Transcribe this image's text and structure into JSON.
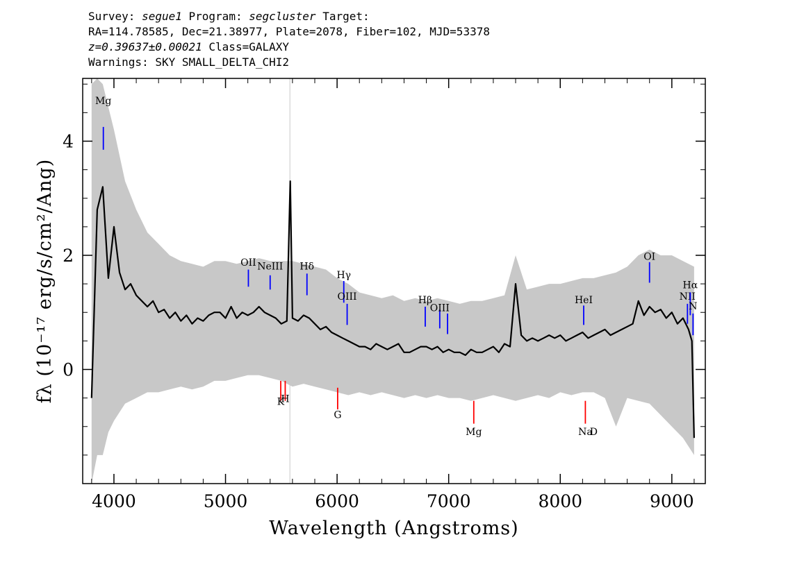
{
  "header": {
    "survey_label": "Survey:",
    "survey_value": "segue1",
    "program_label": "Program:",
    "program_value": "segcluster",
    "target_label": "Target:",
    "line2": "RA=114.78585, Dec=21.38977, Plate=2078, Fiber=102, MJD=53378",
    "redshift": "z=0.39637±0.00021",
    "class_text": "Class=GALAXY",
    "warnings": "Warnings: SKY SMALL_DELTA_CHI2"
  },
  "chart_data": {
    "type": "line",
    "xlabel": "Wavelength (Angstroms)",
    "ylabel": "fλ (10⁻¹⁷ erg/s/cm²/Ang)",
    "xlim": [
      3720,
      9300
    ],
    "ylim": [
      -2.0,
      5.1
    ],
    "x_ticks": [
      4000,
      5000,
      6000,
      7000,
      8000,
      9000
    ],
    "y_ticks": [
      0,
      2,
      4
    ],
    "grid": false,
    "vertical_marker_x": 5577,
    "series": [
      {
        "role": "spectrum",
        "color": "#000000",
        "x": [
          3800,
          3850,
          3900,
          3950,
          4000,
          4050,
          4100,
          4150,
          4200,
          4250,
          4300,
          4350,
          4400,
          4450,
          4500,
          4550,
          4600,
          4650,
          4700,
          4750,
          4800,
          4850,
          4900,
          4950,
          5000,
          5050,
          5100,
          5150,
          5200,
          5250,
          5300,
          5350,
          5400,
          5450,
          5500,
          5550,
          5580,
          5600,
          5650,
          5700,
          5750,
          5800,
          5850,
          5900,
          5950,
          6000,
          6050,
          6100,
          6150,
          6200,
          6250,
          6300,
          6350,
          6400,
          6450,
          6500,
          6550,
          6600,
          6650,
          6700,
          6750,
          6800,
          6850,
          6900,
          6950,
          7000,
          7050,
          7100,
          7150,
          7200,
          7250,
          7300,
          7350,
          7400,
          7450,
          7500,
          7550,
          7600,
          7650,
          7700,
          7750,
          7800,
          7850,
          7900,
          7950,
          8000,
          8050,
          8100,
          8150,
          8200,
          8250,
          8300,
          8350,
          8400,
          8450,
          8500,
          8550,
          8600,
          8650,
          8700,
          8750,
          8800,
          8850,
          8900,
          8950,
          9000,
          9050,
          9100,
          9150,
          9180,
          9200
        ],
        "y": [
          -0.5,
          2.8,
          3.2,
          1.6,
          2.5,
          1.7,
          1.4,
          1.5,
          1.3,
          1.2,
          1.1,
          1.2,
          1.0,
          1.05,
          0.9,
          1.0,
          0.85,
          0.95,
          0.8,
          0.9,
          0.85,
          0.95,
          1.0,
          1.0,
          0.9,
          1.1,
          0.9,
          1.0,
          0.95,
          1.0,
          1.1,
          1.0,
          0.95,
          0.9,
          0.8,
          0.85,
          3.3,
          0.9,
          0.85,
          0.95,
          0.9,
          0.8,
          0.7,
          0.75,
          0.65,
          0.6,
          0.55,
          0.5,
          0.45,
          0.4,
          0.4,
          0.35,
          0.45,
          0.4,
          0.35,
          0.4,
          0.45,
          0.3,
          0.3,
          0.35,
          0.4,
          0.4,
          0.35,
          0.4,
          0.3,
          0.35,
          0.3,
          0.3,
          0.25,
          0.35,
          0.3,
          0.3,
          0.35,
          0.4,
          0.3,
          0.45,
          0.4,
          1.5,
          0.6,
          0.5,
          0.55,
          0.5,
          0.55,
          0.6,
          0.55,
          0.6,
          0.5,
          0.55,
          0.6,
          0.65,
          0.55,
          0.6,
          0.65,
          0.7,
          0.6,
          0.65,
          0.7,
          0.75,
          0.8,
          1.2,
          0.95,
          1.1,
          1.0,
          1.05,
          0.9,
          1.0,
          0.8,
          0.9,
          0.7,
          0.5,
          -1.2
        ]
      },
      {
        "role": "error-envelope",
        "color": "#c8c8c8",
        "x": [
          3800,
          3850,
          3900,
          3950,
          4000,
          4100,
          4200,
          4300,
          4400,
          4500,
          4600,
          4700,
          4800,
          4900,
          5000,
          5100,
          5200,
          5300,
          5400,
          5500,
          5600,
          5700,
          5800,
          5900,
          6000,
          6100,
          6200,
          6300,
          6400,
          6500,
          6600,
          6700,
          6800,
          6900,
          7000,
          7100,
          7200,
          7300,
          7400,
          7500,
          7600,
          7700,
          7800,
          7900,
          8000,
          8100,
          8200,
          8300,
          8400,
          8500,
          8600,
          8700,
          8800,
          8900,
          9000,
          9100,
          9200
        ],
        "y_high": [
          5.0,
          5.1,
          5.0,
          4.6,
          4.2,
          3.3,
          2.8,
          2.4,
          2.2,
          2.0,
          1.9,
          1.85,
          1.8,
          1.9,
          1.9,
          1.85,
          1.9,
          1.95,
          1.9,
          1.9,
          1.9,
          1.85,
          1.8,
          1.75,
          1.6,
          1.5,
          1.35,
          1.3,
          1.25,
          1.3,
          1.2,
          1.25,
          1.2,
          1.25,
          1.2,
          1.15,
          1.2,
          1.2,
          1.25,
          1.3,
          2.0,
          1.4,
          1.45,
          1.5,
          1.5,
          1.55,
          1.6,
          1.6,
          1.65,
          1.7,
          1.8,
          2.0,
          2.1,
          2.0,
          2.0,
          1.9,
          1.8
        ],
        "y_low": [
          -2.0,
          -1.5,
          -1.5,
          -1.1,
          -0.9,
          -0.6,
          -0.5,
          -0.4,
          -0.4,
          -0.35,
          -0.3,
          -0.35,
          -0.3,
          -0.2,
          -0.2,
          -0.15,
          -0.1,
          -0.1,
          -0.15,
          -0.2,
          -0.3,
          -0.25,
          -0.3,
          -0.35,
          -0.4,
          -0.45,
          -0.4,
          -0.45,
          -0.4,
          -0.45,
          -0.5,
          -0.45,
          -0.5,
          -0.45,
          -0.5,
          -0.5,
          -0.55,
          -0.5,
          -0.45,
          -0.5,
          -0.55,
          -0.5,
          -0.45,
          -0.5,
          -0.4,
          -0.45,
          -0.4,
          -0.4,
          -0.5,
          -1.0,
          -0.5,
          -0.55,
          -0.6,
          -0.8,
          -1.0,
          -1.2,
          -1.5
        ]
      }
    ],
    "emission_lines": [
      {
        "label": "Mg",
        "x": 3905,
        "y_top": 4.25,
        "y_bottom": 3.85,
        "label_y": 4.65
      },
      {
        "label": "OII",
        "x": 5205,
        "y_top": 1.75,
        "y_bottom": 1.45,
        "label_y": 1.82
      },
      {
        "label": "NeIII",
        "x": 5400,
        "y_top": 1.65,
        "y_bottom": 1.4,
        "label_y": 1.75
      },
      {
        "label": "Hδ",
        "x": 5730,
        "y_top": 1.68,
        "y_bottom": 1.3,
        "label_y": 1.75
      },
      {
        "label": "Hγ",
        "x": 6060,
        "y_top": 1.55,
        "y_bottom": 1.17,
        "label_y": 1.6
      },
      {
        "label": "OIII",
        "x": 6090,
        "y_top": 1.15,
        "y_bottom": 0.78,
        "label_y": 1.22
      },
      {
        "label": "Hβ",
        "x": 6790,
        "y_top": 1.1,
        "y_bottom": 0.75,
        "label_y": 1.16
      },
      {
        "label": "OIII",
        "x": 6920,
        "y_top": 1.05,
        "y_bottom": 0.72,
        "label_y": 1.02
      },
      {
        "label": "",
        "x": 6990,
        "y_top": 0.98,
        "y_bottom": 0.62,
        "label_y": 0
      },
      {
        "label": "HeI",
        "x": 8210,
        "y_top": 1.12,
        "y_bottom": 0.78,
        "label_y": 1.16
      },
      {
        "label": "OI",
        "x": 8800,
        "y_top": 1.88,
        "y_bottom": 1.52,
        "label_y": 1.92
      },
      {
        "label": "NII",
        "x": 9140,
        "y_top": 1.15,
        "y_bottom": 0.8,
        "label_y": 1.22
      },
      {
        "label": "Hα",
        "x": 9165,
        "y_top": 1.35,
        "y_bottom": 0.95,
        "label_y": 1.42
      },
      {
        "label": "N",
        "x": 9190,
        "y_top": 0.98,
        "y_bottom": 0.6,
        "label_y": 1.05
      }
    ],
    "absorption_lines": [
      {
        "label": "K",
        "x": 5495,
        "y_top": -0.2,
        "y_bottom": -0.55,
        "label_y": -0.4
      },
      {
        "label": "H",
        "x": 5535,
        "y_top": -0.2,
        "y_bottom": -0.55,
        "label_y": -0.35
      },
      {
        "label": "G",
        "x": 6005,
        "y_top": -0.32,
        "y_bottom": -0.7,
        "label_y": -0.63
      },
      {
        "label": "Mg",
        "x": 7225,
        "y_top": -0.55,
        "y_bottom": -0.95,
        "label_y": -0.93
      },
      {
        "label": "Na",
        "x": 8225,
        "y_top": -0.55,
        "y_bottom": -0.95,
        "label_y": -0.93
      },
      {
        "label": "D",
        "x": 8300,
        "y_top": 0,
        "y_bottom": 0,
        "label_y": -0.93
      }
    ]
  }
}
